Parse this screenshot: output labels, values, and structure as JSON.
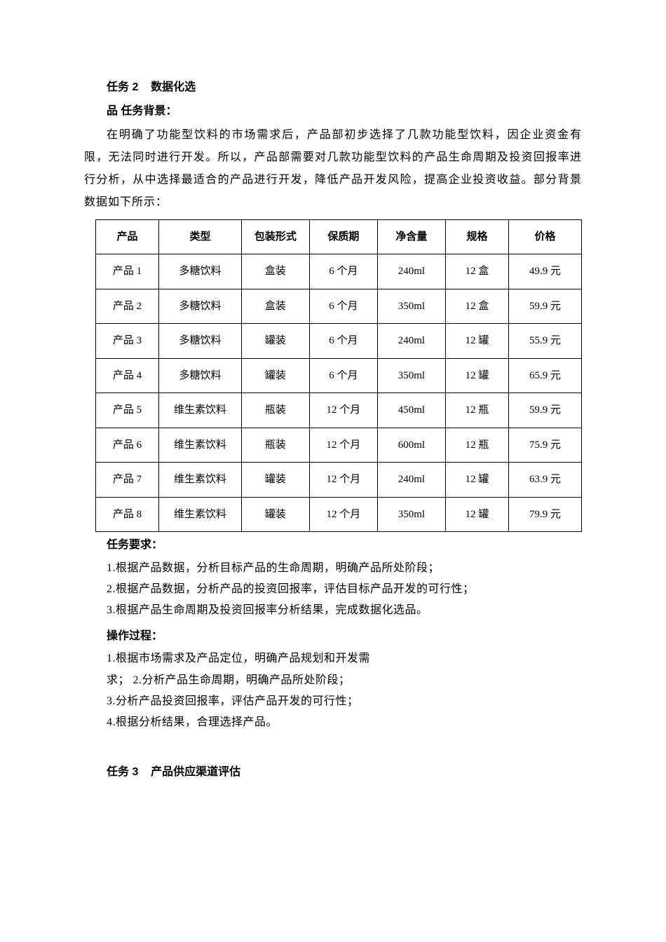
{
  "task2": {
    "title_prefix": "任务 2",
    "title_rest": "数据化选",
    "title_line2": "品 任务背景：",
    "background": "在明确了功能型饮料的市场需求后，产品部初步选择了几款功能型饮料，因企业资金有限，无法同时进行开发。所以，产品部需要对几款功能型饮料的产品生命周期及投资回报率进行分析，从中选择最适合的产品进行开发，降低产品开发风险，提高企业投资收益。部分背景数据如下所示：",
    "table": {
      "columns": [
        "产品",
        "类型",
        "包装形式",
        "保质期",
        "净含量",
        "规格",
        "价格"
      ],
      "col_widths": [
        "13%",
        "17%",
        "14%",
        "14%",
        "14%",
        "13%",
        "15%"
      ],
      "rows": [
        [
          "产品 1",
          "多糖饮料",
          "盒装",
          "6 个月",
          "240ml",
          "12 盒",
          "49.9 元"
        ],
        [
          "产品 2",
          "多糖饮料",
          "盒装",
          "6 个月",
          "350ml",
          "12 盒",
          "59.9 元"
        ],
        [
          "产品 3",
          "多糖饮料",
          "罐装",
          "6 个月",
          "240ml",
          "12 罐",
          "55.9 元"
        ],
        [
          "产品 4",
          "多糖饮料",
          "罐装",
          "6 个月",
          "350ml",
          "12 罐",
          "65.9 元"
        ],
        [
          "产品 5",
          "维生素饮料",
          "瓶装",
          "12 个月",
          "450ml",
          "12 瓶",
          "59.9 元"
        ],
        [
          "产品 6",
          "维生素饮料",
          "瓶装",
          "12 个月",
          "600ml",
          "12 瓶",
          "75.9 元"
        ],
        [
          "产品 7",
          "维生素饮料",
          "罐装",
          "12 个月",
          "240ml",
          "12 罐",
          "63.9 元"
        ],
        [
          "产品 8",
          "维生素饮料",
          "罐装",
          "12 个月",
          "350ml",
          "12 罐",
          "79.9 元"
        ]
      ]
    },
    "req_heading": "任务要求：",
    "requirements": [
      "1.根据产品数据，分析目标产品的生命周期，明确产品所处阶段；",
      "2.根据产品数据，分析产品的投资回报率，评估目标产品开发的可行性；",
      "3.根据产品生命周期及投资回报率分析结果，完成数据化选品。"
    ],
    "proc_heading": "操作过程：",
    "procedures": [
      "1.根据市场需求及产品定位，明确产品规划和开发需",
      "求；  2.分析产品生命周期，明确产品所处阶段；",
      "3.分析产品投资回报率，评估产品开发的可行性；",
      "4.根据分析结果，合理选择产品。"
    ]
  },
  "task3": {
    "title_prefix": "任务 3",
    "title_rest": "产品供应渠道评估"
  }
}
